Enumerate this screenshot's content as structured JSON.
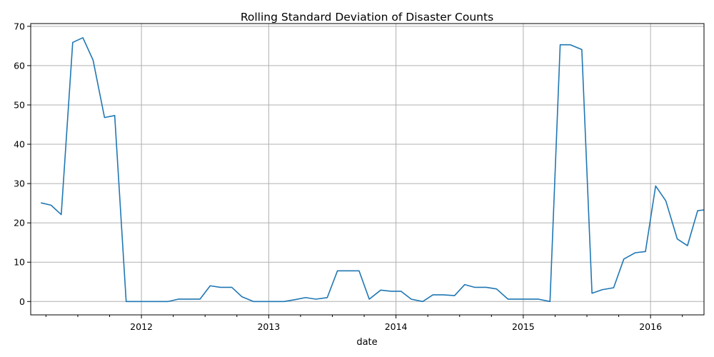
{
  "chart_data": {
    "type": "line",
    "title": "Rolling Standard Deviation of Disaster Counts",
    "xlabel": "date",
    "ylabel": "",
    "grid": true,
    "xlim": [
      2011.13,
      2016.42
    ],
    "ylim": [
      -3.4,
      70.7
    ],
    "x_ticks": [
      2012,
      2013,
      2014,
      2015,
      2016
    ],
    "x_minor_ticks": [
      2011.25,
      2011.5,
      2011.75,
      2012.25,
      2012.5,
      2012.75,
      2013.25,
      2013.5,
      2013.75,
      2014.25,
      2014.5,
      2014.75,
      2015.25,
      2015.5,
      2015.75,
      2016.25
    ],
    "y_ticks": [
      0,
      10,
      20,
      30,
      40,
      50,
      60,
      70
    ],
    "series": [
      {
        "name": "",
        "color": "#1f77b4",
        "x": [
          2011.21,
          2011.29,
          2011.37,
          2011.46,
          2011.54,
          2011.62,
          2011.71,
          2011.79,
          2011.88,
          2011.96,
          2012.04,
          2012.12,
          2012.21,
          2012.29,
          2012.37,
          2012.46,
          2012.54,
          2012.62,
          2012.71,
          2012.79,
          2012.88,
          2012.96,
          2013.04,
          2013.12,
          2013.21,
          2013.29,
          2013.37,
          2013.46,
          2013.54,
          2013.62,
          2013.71,
          2013.79,
          2013.88,
          2013.96,
          2014.04,
          2014.12,
          2014.21,
          2014.29,
          2014.37,
          2014.46,
          2014.54,
          2014.62,
          2014.71,
          2014.79,
          2014.88,
          2014.96,
          2015.04,
          2015.12,
          2015.21,
          2015.29,
          2015.37,
          2015.46,
          2015.54,
          2015.62,
          2015.71,
          2015.79,
          2015.88,
          2015.96,
          2016.04,
          2016.12,
          2016.21,
          2016.29,
          2016.37,
          2016.42
        ],
        "y": [
          25.1,
          24.5,
          22.1,
          65.9,
          67.1,
          61.4,
          46.8,
          47.3,
          0.0,
          0.0,
          0.0,
          0.0,
          0.0,
          0.6,
          0.6,
          0.6,
          4.0,
          3.6,
          3.6,
          1.2,
          0.0,
          0.0,
          0.0,
          0.0,
          0.5,
          1.0,
          0.6,
          1.0,
          7.8,
          7.8,
          7.8,
          0.6,
          2.9,
          2.6,
          2.6,
          0.6,
          0.0,
          1.7,
          1.7,
          1.5,
          4.3,
          3.6,
          3.6,
          3.2,
          0.6,
          0.6,
          0.6,
          0.6,
          0.0,
          65.3,
          65.3,
          64.1,
          2.1,
          3.0,
          3.5,
          10.8,
          12.4,
          12.7,
          29.4,
          25.6,
          15.9,
          14.2,
          23.1,
          23.3
        ]
      }
    ]
  }
}
